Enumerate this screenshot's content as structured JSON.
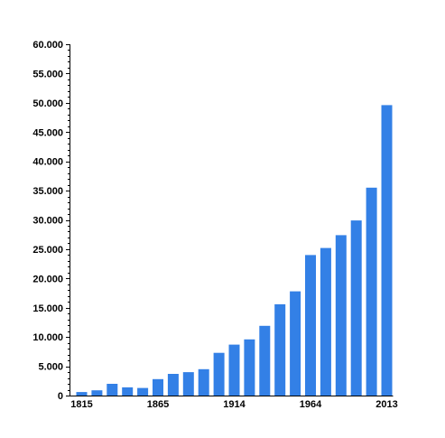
{
  "chart_data": {
    "type": "bar",
    "title": "",
    "xlabel": "",
    "ylabel": "",
    "bar_color": "#3380e6",
    "ylim": [
      0,
      60000
    ],
    "y_ticks": [
      {
        "value": 0,
        "label": "0"
      },
      {
        "value": 5000,
        "label": "5.000"
      },
      {
        "value": 10000,
        "label": "10.000"
      },
      {
        "value": 15000,
        "label": "15.000"
      },
      {
        "value": 20000,
        "label": "20.000"
      },
      {
        "value": 25000,
        "label": "25.000"
      },
      {
        "value": 30000,
        "label": "30.000"
      },
      {
        "value": 35000,
        "label": "35.000"
      },
      {
        "value": 40000,
        "label": "40.000"
      },
      {
        "value": 45000,
        "label": "45.000"
      },
      {
        "value": 50000,
        "label": "50.000"
      },
      {
        "value": 55000,
        "label": "55.000"
      },
      {
        "value": 60000,
        "label": "60.000"
      }
    ],
    "x_tick_labels": [
      {
        "index": 0,
        "label": "1815"
      },
      {
        "index": 5,
        "label": "1865"
      },
      {
        "index": 10,
        "label": "1914"
      },
      {
        "index": 15,
        "label": "1964"
      },
      {
        "index": 20,
        "label": "2013"
      }
    ],
    "values": [
      600,
      900,
      2000,
      1400,
      1300,
      2800,
      3700,
      4000,
      4500,
      7300,
      8700,
      9600,
      11900,
      15600,
      17800,
      24000,
      25200,
      27400,
      29900,
      35500,
      49600
    ]
  }
}
